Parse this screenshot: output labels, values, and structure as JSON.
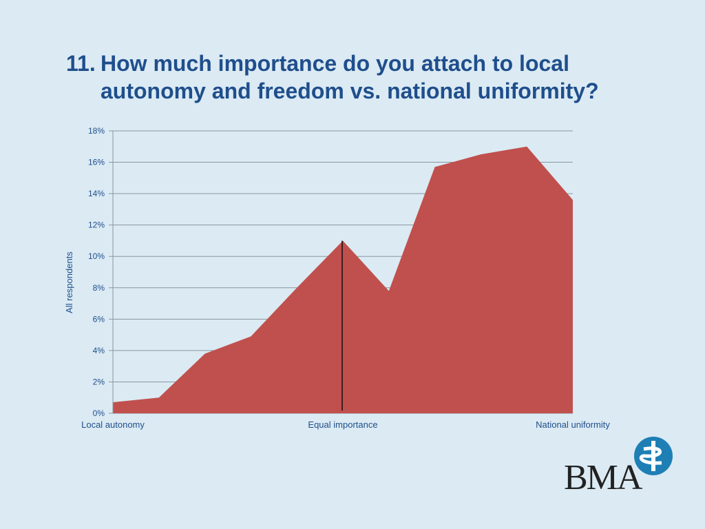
{
  "title": {
    "number": "11.",
    "text": "How much importance do you attach to local autonomy and freedom vs. national uniformity?"
  },
  "chart_data": {
    "type": "area",
    "title": "How much importance do you attach to local autonomy and freedom vs. national uniformity?",
    "xlabel": "",
    "ylabel": "All respondents",
    "x_tick_labels": [
      "Local autonomy",
      "Equal importance",
      "National uniformity"
    ],
    "y_ticks": [
      "0%",
      "2%",
      "4%",
      "6%",
      "8%",
      "10%",
      "12%",
      "14%",
      "16%",
      "18%"
    ],
    "ylim": [
      0,
      18
    ],
    "grid": true,
    "x": [
      0,
      1,
      2,
      3,
      4,
      5,
      6,
      7,
      8,
      9,
      10
    ],
    "values": [
      0.7,
      1.0,
      3.8,
      4.9,
      8.0,
      11.0,
      7.8,
      15.7,
      16.5,
      17.0,
      13.6
    ],
    "marker_line_at_x": 5,
    "fill_color": "#c0504d",
    "grid_color": "#8a96a0",
    "text_color": "#1f4e8c"
  },
  "logo": {
    "text": "BMA",
    "accent": "#1e7fb5"
  }
}
